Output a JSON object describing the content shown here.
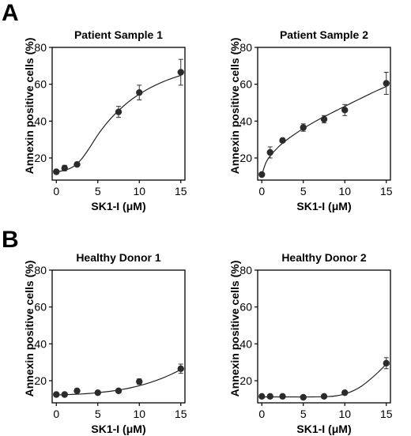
{
  "figure": {
    "panel_labels": [
      "A",
      "B"
    ]
  },
  "chart_data": [
    {
      "type": "scatter",
      "title": "Patient Sample 1",
      "xlabel": "SK1-I (μM)",
      "ylabel": "Annexin positive cells (%)",
      "xlim": [
        -0.5,
        15.5
      ],
      "ylim": [
        8,
        80
      ],
      "x_ticks": [
        0,
        5,
        10,
        15
      ],
      "y_ticks": [
        20,
        40,
        60,
        80
      ],
      "series": [
        {
          "x": [
            0,
            1,
            2.5,
            7.5,
            10,
            15
          ],
          "y": [
            12.5,
            14.5,
            16.5,
            45,
            55.5,
            66.5
          ],
          "error": [
            0.8,
            1.5,
            1.0,
            3.0,
            4.0,
            7.0
          ]
        }
      ],
      "fit": {
        "x": [
          0,
          1,
          2,
          3,
          4,
          5,
          6,
          7,
          8,
          9,
          10,
          11,
          12,
          13,
          14,
          15
        ],
        "y": [
          12.5,
          13.3,
          15.2,
          19.2,
          25.5,
          32.5,
          38.5,
          43.5,
          47.8,
          51.5,
          54.6,
          57.3,
          59.6,
          61.6,
          63.3,
          64.8
        ]
      }
    },
    {
      "type": "scatter",
      "title": "Patient Sample 2",
      "xlabel": "SK1-I (μM)",
      "ylabel": "Annexin positive cells (%)",
      "xlim": [
        -0.5,
        15.5
      ],
      "ylim": [
        8,
        80
      ],
      "x_ticks": [
        0,
        5,
        10,
        15
      ],
      "y_ticks": [
        20,
        40,
        60,
        80
      ],
      "series": [
        {
          "x": [
            0,
            1,
            2.5,
            5,
            7.5,
            10,
            15
          ],
          "y": [
            11,
            23,
            29.5,
            36.5,
            41,
            46,
            60.5
          ],
          "error": [
            0.8,
            3.0,
            1.0,
            2.0,
            2.0,
            3.0,
            6.0
          ]
        }
      ],
      "fit": {
        "x": [
          0,
          0.5,
          1,
          2,
          3,
          4,
          5,
          6,
          7,
          8,
          9,
          10,
          11,
          12,
          13,
          14,
          15
        ],
        "y": [
          11,
          17.5,
          21,
          26,
          29.8,
          33,
          36,
          38.7,
          41.2,
          43.5,
          45.8,
          48,
          50.3,
          52.5,
          54.7,
          56.8,
          58.8
        ]
      }
    },
    {
      "type": "scatter",
      "title": "Healthy Donor 1",
      "xlabel": "SK1-I (μM)",
      "ylabel": "Annexin positive cells (%)",
      "xlim": [
        -0.5,
        15.5
      ],
      "ylim": [
        8,
        80
      ],
      "x_ticks": [
        0,
        5,
        10,
        15
      ],
      "y_ticks": [
        20,
        40,
        60,
        80
      ],
      "series": [
        {
          "x": [
            0,
            1,
            2.5,
            5,
            7.5,
            10,
            15
          ],
          "y": [
            12.5,
            12.5,
            14.5,
            13.5,
            14.5,
            19.5,
            26.5
          ],
          "error": [
            0.8,
            0.8,
            1.0,
            0.8,
            1.0,
            1.5,
            2.5
          ]
        }
      ],
      "fit": {
        "x": [
          0,
          1,
          2,
          3,
          4,
          5,
          6,
          7,
          8,
          9,
          10,
          11,
          12,
          13,
          14,
          15
        ],
        "y": [
          12.3,
          12.4,
          12.6,
          12.8,
          13.1,
          13.5,
          14,
          14.6,
          15.3,
          16.2,
          17.3,
          18.6,
          20.1,
          21.8,
          23.8,
          26
        ]
      }
    },
    {
      "type": "scatter",
      "title": "Healthy Donor 2",
      "xlabel": "SK1-I (μM)",
      "ylabel": "Annexin positive cells (%)",
      "xlim": [
        -0.5,
        15.5
      ],
      "ylim": [
        8,
        80
      ],
      "x_ticks": [
        0,
        5,
        10,
        15
      ],
      "y_ticks": [
        20,
        40,
        60,
        80
      ],
      "series": [
        {
          "x": [
            0,
            1,
            2.5,
            5,
            7.5,
            10,
            15
          ],
          "y": [
            11.5,
            11.5,
            11.5,
            11,
            11.5,
            13.5,
            29.5
          ],
          "error": [
            0.6,
            0.6,
            0.6,
            0.6,
            0.6,
            1.0,
            3.0
          ]
        }
      ],
      "fit": {
        "x": [
          0,
          2,
          4,
          6,
          8,
          9,
          10,
          11,
          12,
          13,
          14,
          15
        ],
        "y": [
          11.2,
          11.2,
          11.2,
          11.2,
          11.4,
          11.8,
          12.8,
          14.5,
          17,
          20.5,
          24.5,
          29
        ]
      }
    }
  ]
}
